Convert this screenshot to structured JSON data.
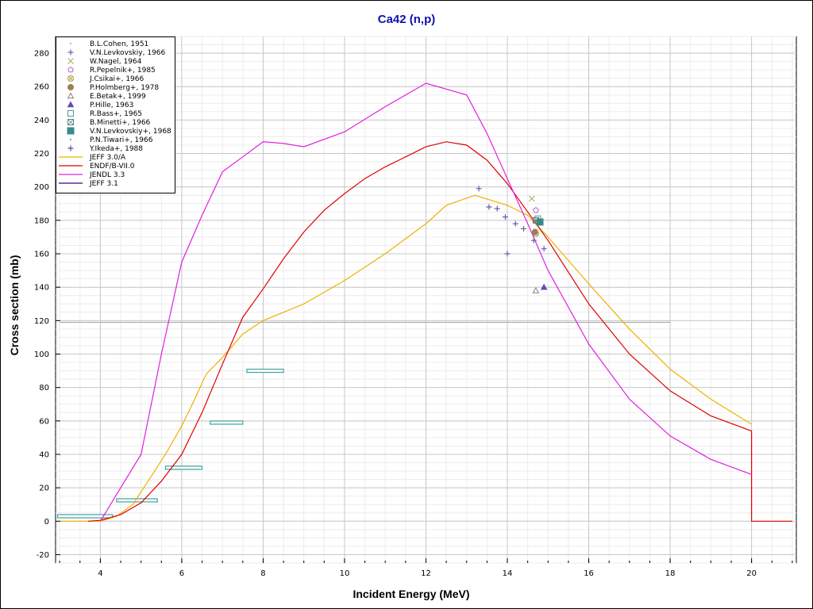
{
  "chart_data": {
    "type": "line",
    "title": "Ca42 (n,p)",
    "xlabel": "Incident Energy (MeV)",
    "ylabel": "Cross section (mb)",
    "xlim": [
      2.9,
      21.1
    ],
    "ylim": [
      -25,
      290
    ],
    "xticks": [
      4,
      6,
      8,
      10,
      12,
      14,
      16,
      18,
      20
    ],
    "yticks": [
      -20,
      0,
      20,
      40,
      60,
      80,
      100,
      120,
      140,
      160,
      180,
      200,
      220,
      240,
      260,
      280
    ],
    "grid": true,
    "legend_position": "top-left",
    "reference_line": {
      "y": 119,
      "x_from": 3,
      "x_to": 18
    },
    "series": [
      {
        "name": "B.L.Cohen, 1951",
        "kind": "points",
        "marker": "dot",
        "color": "#9aa0c8",
        "points": []
      },
      {
        "name": "V.N.Levkovskiy, 1966",
        "kind": "points",
        "marker": "plus",
        "color": "#6a5aa8",
        "points": [
          [
            13.3,
            199
          ],
          [
            13.55,
            188
          ],
          [
            13.75,
            187
          ],
          [
            13.95,
            182
          ],
          [
            14.2,
            178
          ],
          [
            14.4,
            175
          ],
          [
            14.65,
            168
          ],
          [
            14.9,
            163
          ],
          [
            14.0,
            160
          ]
        ]
      },
      {
        "name": "W.Nagel, 1964",
        "kind": "points",
        "marker": "x",
        "color": "#b0b060",
        "points": [
          [
            14.6,
            193
          ]
        ]
      },
      {
        "name": "R.Pepelnik+, 1985",
        "kind": "points",
        "marker": "pentagon",
        "color": "#c060c0",
        "points": [
          [
            14.7,
            186
          ]
        ]
      },
      {
        "name": "J.Csikai+, 1966",
        "kind": "points",
        "marker": "circle-x",
        "color": "#a0a040",
        "points": [
          [
            14.7,
            172
          ]
        ]
      },
      {
        "name": "P.Holmberg+, 1978",
        "kind": "points",
        "marker": "filled-circle",
        "color": "#a08050",
        "points": [
          [
            14.68,
            173
          ]
        ]
      },
      {
        "name": "E.Betak+, 1999",
        "kind": "points",
        "marker": "triangle",
        "color": "#808080",
        "points": [
          [
            14.7,
            138
          ]
        ]
      },
      {
        "name": "P.Hille, 1963",
        "kind": "points",
        "marker": "filled-triangle",
        "color": "#6a4ab0",
        "points": [
          [
            14.9,
            140
          ]
        ]
      },
      {
        "name": "R.Bass+, 1965",
        "kind": "points",
        "marker": "square",
        "color": "#40a0a0",
        "points": [
          [
            14.75,
            181
          ]
        ]
      },
      {
        "name": "B.Minetti+, 1966",
        "kind": "points",
        "marker": "square-x",
        "color": "#608080",
        "points": [
          [
            14.7,
            180
          ]
        ]
      },
      {
        "name": "V.N.Levkovskiy+, 1968",
        "kind": "points",
        "marker": "filled-square",
        "color": "#3a8a8a",
        "points": [
          [
            14.8,
            179
          ]
        ]
      },
      {
        "name": "P.N.Tiwari+, 1966",
        "kind": "points",
        "marker": "dot",
        "color": "#40a0a0",
        "bars": [
          [
            2.95,
            4.3,
            3
          ],
          [
            4.4,
            5.4,
            12.5
          ],
          [
            5.6,
            6.5,
            32
          ],
          [
            6.7,
            7.5,
            59
          ],
          [
            7.6,
            8.5,
            90
          ]
        ]
      },
      {
        "name": "Y.Ikeda+, 1988",
        "kind": "points",
        "marker": "plus",
        "color": "#5050a0",
        "points": []
      },
      {
        "name": "JEFF 3.0/A",
        "kind": "line",
        "color": "#f0b000",
        "points": [
          [
            3.0,
            0
          ],
          [
            4.0,
            0
          ],
          [
            4.4,
            3
          ],
          [
            4.8,
            10
          ],
          [
            5.2,
            25
          ],
          [
            5.6,
            40
          ],
          [
            6.0,
            57
          ],
          [
            6.3,
            72
          ],
          [
            6.6,
            88
          ],
          [
            7.0,
            98
          ],
          [
            7.5,
            112
          ],
          [
            8.0,
            120
          ],
          [
            9.0,
            130
          ],
          [
            10.0,
            144
          ],
          [
            11.0,
            160
          ],
          [
            12.0,
            178
          ],
          [
            12.5,
            189
          ],
          [
            13.2,
            195
          ],
          [
            14.0,
            189
          ],
          [
            14.5,
            183
          ],
          [
            15.0,
            170
          ],
          [
            16.0,
            142
          ],
          [
            17.0,
            115
          ],
          [
            18.0,
            91
          ],
          [
            19.0,
            73
          ],
          [
            20.0,
            58
          ]
        ]
      },
      {
        "name": "ENDF/B-VII.0",
        "kind": "line",
        "color": "#e00000",
        "points": [
          [
            3.7,
            0
          ],
          [
            4.0,
            0.5
          ],
          [
            4.5,
            4
          ],
          [
            5.0,
            11
          ],
          [
            5.5,
            24
          ],
          [
            6.0,
            40
          ],
          [
            6.5,
            65
          ],
          [
            7.0,
            94
          ],
          [
            7.5,
            122
          ],
          [
            8.0,
            139
          ],
          [
            8.5,
            157
          ],
          [
            9.0,
            173
          ],
          [
            9.5,
            186
          ],
          [
            10.0,
            196
          ],
          [
            10.5,
            205
          ],
          [
            11.0,
            212
          ],
          [
            11.5,
            218
          ],
          [
            12.0,
            224
          ],
          [
            12.5,
            227
          ],
          [
            13.0,
            225
          ],
          [
            13.5,
            216
          ],
          [
            14.0,
            202
          ],
          [
            14.5,
            185
          ],
          [
            15.0,
            168
          ],
          [
            16.0,
            130
          ],
          [
            17.0,
            100
          ],
          [
            18.0,
            78
          ],
          [
            19.0,
            63
          ],
          [
            20.0,
            54
          ],
          [
            20.0,
            0
          ],
          [
            21.0,
            0
          ]
        ]
      },
      {
        "name": "JENDL 3.3",
        "kind": "line",
        "color": "#e020e0",
        "points": [
          [
            4.0,
            0
          ],
          [
            4.5,
            20
          ],
          [
            5.0,
            40
          ],
          [
            5.5,
            100
          ],
          [
            6.0,
            155
          ],
          [
            6.5,
            183
          ],
          [
            7.0,
            209
          ],
          [
            7.5,
            218
          ],
          [
            8.0,
            227
          ],
          [
            8.5,
            226
          ],
          [
            9.0,
            224
          ],
          [
            10.0,
            233
          ],
          [
            11.0,
            248
          ],
          [
            12.0,
            262
          ],
          [
            13.0,
            255
          ],
          [
            13.5,
            232
          ],
          [
            14.0,
            205
          ],
          [
            14.5,
            178
          ],
          [
            15.0,
            150
          ],
          [
            16.0,
            106
          ],
          [
            17.0,
            73
          ],
          [
            18.0,
            51
          ],
          [
            19.0,
            37
          ],
          [
            20.0,
            28
          ]
        ]
      },
      {
        "name": "JEFF 3.1",
        "kind": "line",
        "color": "#400080",
        "points": []
      }
    ]
  }
}
